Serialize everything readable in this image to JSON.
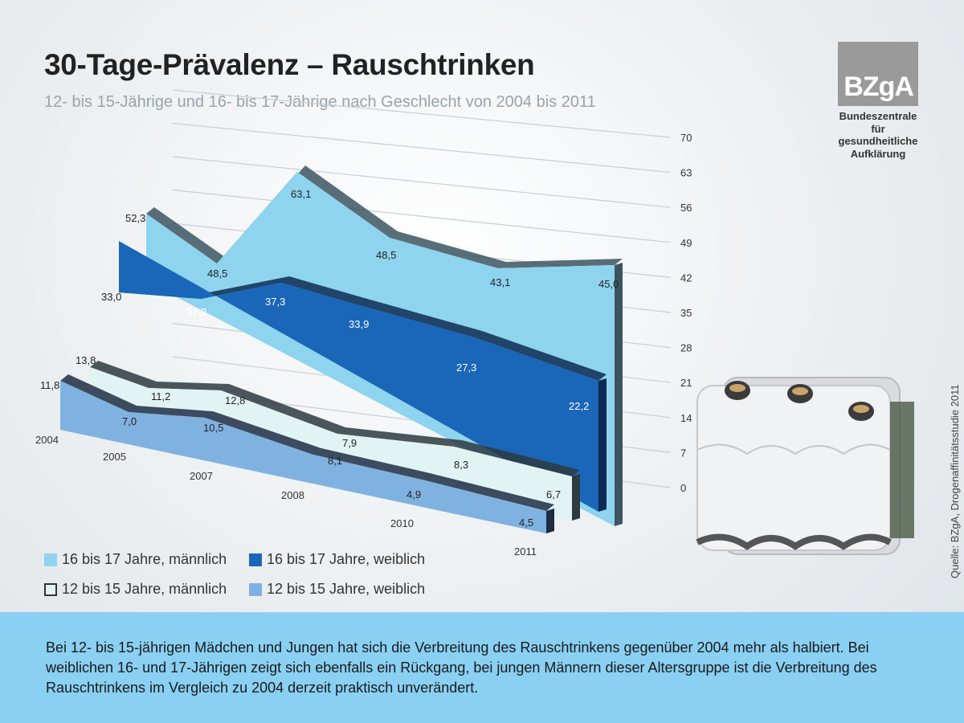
{
  "title": "30-Tage-Prävalenz – Rauschtrinken",
  "subtitle": "12- bis 15-Jährige und 16- bis 17-Jährige nach Geschlecht von 2004 bis 2011",
  "logo": {
    "text": "BZgA",
    "caption": [
      "Bundeszentrale",
      "für",
      "gesundheitliche",
      "Aufklärung"
    ]
  },
  "source": "Quelle: BZgA, Drogenaffinitätsstudie 2011",
  "description": "Bei 12- bis 15-jährigen Mädchen und Jungen hat sich die Verbreitung des Rauschtrinkens gegenüber 2004 mehr als halbiert. Bei weiblichen 16- und 17-Jährigen zeigt sich ebenfalls ein Rückgang, bei jungen Männern dieser Altersgruppe ist die Verbreitung des Rauschtrinkens im Vergleich zu 2004 derzeit praktisch unverändert.",
  "colors": {
    "m1617": "#8fd4ee",
    "w1617": "#1a66b8",
    "m1215": "#e2f3f4",
    "w1215": "#7fb2e0",
    "panel": "#8ad0f3"
  },
  "chart_data": {
    "type": "area",
    "x": [
      "2004",
      "2005",
      "2007",
      "2008",
      "2010",
      "2011"
    ],
    "ylim": [
      0,
      70
    ],
    "yticks": [
      "0",
      "7",
      "14",
      "21",
      "28",
      "35",
      "42",
      "49",
      "56",
      "63",
      "70"
    ],
    "series": [
      {
        "name": "16 bis 17 Jahre, männlich",
        "values": [
          52.3,
          48.5,
          63.1,
          48.5,
          43.1,
          45.0
        ],
        "labels": [
          "52,3",
          "48,5",
          "63,1",
          "48,5",
          "43,1",
          "45,0"
        ]
      },
      {
        "name": "16 bis 17 Jahre, weiblich",
        "values": [
          33.0,
          31.3,
          37.3,
          33.9,
          27.3,
          22.2
        ],
        "labels": [
          "33,0",
          "31,3",
          "37,3",
          "33,9",
          "27,3",
          "22,2"
        ]
      },
      {
        "name": "12 bis 15 Jahre, männlich",
        "values": [
          13.8,
          11.2,
          12.8,
          7.9,
          8.3,
          6.7
        ],
        "labels": [
          "13,8",
          "11,2",
          "12,8",
          "7,9",
          "8,3",
          "6,7"
        ]
      },
      {
        "name": "12 bis 15 Jahre, weiblich",
        "values": [
          11.8,
          7.0,
          10.5,
          8.1,
          4.9,
          4.5
        ],
        "labels": [
          "11,8",
          "7,0",
          "10,5",
          "8,1",
          "4,9",
          "4,5"
        ]
      }
    ]
  }
}
